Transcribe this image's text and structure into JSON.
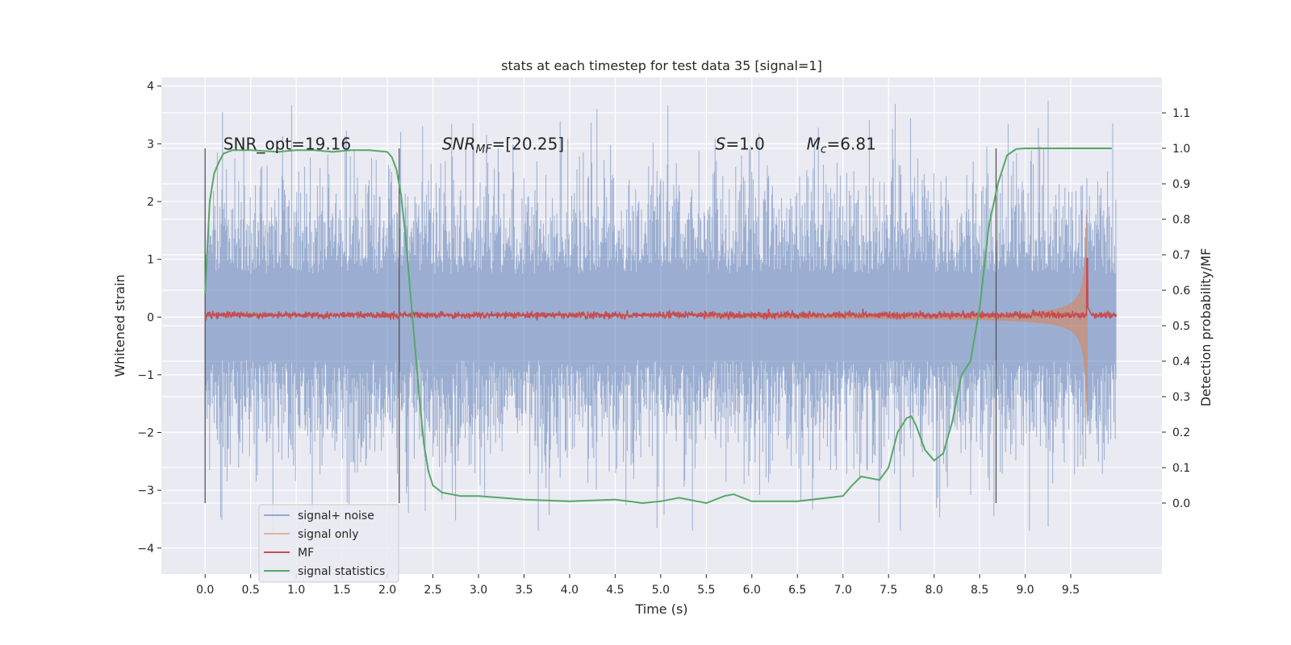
{
  "chart_data": {
    "type": "line",
    "title": "stats at each timestep for test data 35 [signal=1]",
    "xlabel": "Time (s)",
    "ylabel_left": "Whitened strain",
    "ylabel_right": "Detection probability/MF",
    "xlim": [
      -0.48,
      10.5
    ],
    "ylim_left": [
      -4.45,
      4.15
    ],
    "ylim_right": [
      -0.2,
      1.2
    ],
    "x_ticks": [
      "0.0",
      "0.5",
      "1.0",
      "1.5",
      "2.0",
      "2.5",
      "3.0",
      "3.5",
      "4.0",
      "4.5",
      "5.0",
      "5.5",
      "6.0",
      "6.5",
      "7.0",
      "7.5",
      "8.0",
      "8.5",
      "9.0",
      "9.5"
    ],
    "y_left_ticks": [
      "−4",
      "−3",
      "−2",
      "−1",
      "0",
      "1",
      "2",
      "3",
      "4"
    ],
    "y_right_ticks": [
      "0.0",
      "0.1",
      "0.2",
      "0.3",
      "0.4",
      "0.5",
      "0.6",
      "0.7",
      "0.8",
      "0.9",
      "1.0",
      "1.1"
    ],
    "grid": true,
    "legend_position": "lower-left",
    "annotations": [
      {
        "text": "SNR_opt=19.16",
        "x": 0.2,
        "y": 3.0
      },
      {
        "text": "SNR_MF=[20.25]",
        "x": 2.6,
        "y": 3.0
      },
      {
        "text": "S=1.0",
        "x": 5.6,
        "y": 3.0
      },
      {
        "text": "M_c=6.81",
        "x": 6.6,
        "y": 3.0
      }
    ],
    "vertical_lines_x": [
      0.0,
      2.13,
      8.68
    ],
    "series": [
      {
        "name": "signal+ noise",
        "color": "#4c72b0",
        "axis": "left",
        "x_range": [
          0.0,
          10.0
        ],
        "envelope": [
          -2.8,
          2.8
        ]
      },
      {
        "name": "signal only",
        "color": "#dd8452",
        "axis": "left",
        "x_range": [
          5.5,
          9.68
        ],
        "peak_amplitude": 2.3
      },
      {
        "name": "MF",
        "color": "#c44e52",
        "axis": "right",
        "x_range": [
          0.0,
          10.0
        ],
        "level": 0.53,
        "peak": {
          "x": 9.68,
          "y": 0.69
        }
      },
      {
        "name": "signal statistics",
        "color": "#55a868",
        "axis": "right",
        "x": [
          0.0,
          0.05,
          0.1,
          0.15,
          0.2,
          0.3,
          0.5,
          0.8,
          1.0,
          1.2,
          1.4,
          1.6,
          1.8,
          2.0,
          2.05,
          2.1,
          2.15,
          2.2,
          2.25,
          2.3,
          2.35,
          2.4,
          2.45,
          2.5,
          2.6,
          2.8,
          3.0,
          3.5,
          4.0,
          4.5,
          4.8,
          5.0,
          5.2,
          5.5,
          5.7,
          5.8,
          5.9,
          6.0,
          6.5,
          7.0,
          7.1,
          7.2,
          7.3,
          7.4,
          7.5,
          7.6,
          7.7,
          7.75,
          7.8,
          7.9,
          8.0,
          8.1,
          8.2,
          8.3,
          8.4,
          8.5,
          8.6,
          8.7,
          8.8,
          8.9,
          9.0,
          9.5,
          9.95
        ],
        "y": [
          0.59,
          0.85,
          0.93,
          0.96,
          0.985,
          0.995,
          0.995,
          0.99,
          0.995,
          0.995,
          0.99,
          0.995,
          0.995,
          0.99,
          0.975,
          0.94,
          0.87,
          0.75,
          0.6,
          0.45,
          0.3,
          0.17,
          0.09,
          0.05,
          0.03,
          0.02,
          0.02,
          0.01,
          0.005,
          0.01,
          0.0,
          0.005,
          0.015,
          0.0,
          0.02,
          0.025,
          0.015,
          0.005,
          0.005,
          0.02,
          0.05,
          0.075,
          0.07,
          0.065,
          0.1,
          0.2,
          0.24,
          0.245,
          0.22,
          0.15,
          0.12,
          0.14,
          0.23,
          0.36,
          0.4,
          0.55,
          0.78,
          0.9,
          0.98,
          0.998,
          1.0,
          1.0,
          1.0
        ]
      }
    ]
  }
}
